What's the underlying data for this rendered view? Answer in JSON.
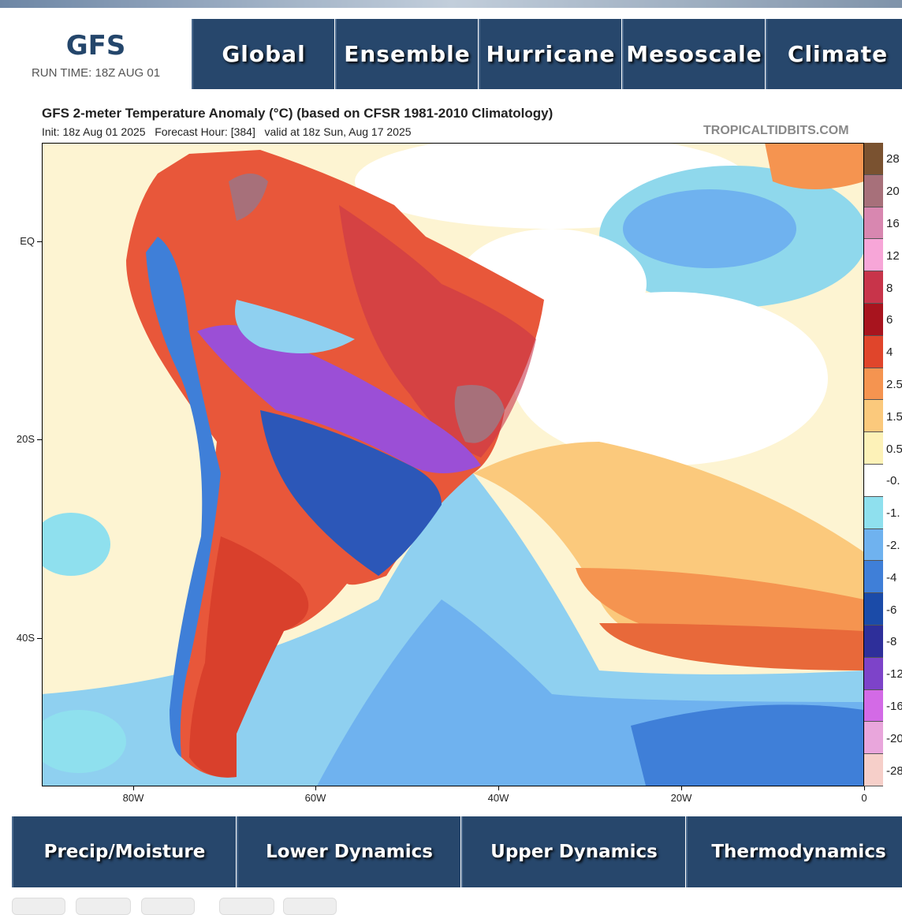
{
  "header": {
    "title": "GFS",
    "run_time": "RUN TIME: 18Z AUG 01"
  },
  "nav_top": [
    "Global",
    "Ensemble",
    "Hurricane",
    "Mesoscale",
    "Climate"
  ],
  "map": {
    "title": "GFS 2-meter Temperature Anomaly (°C) (based on CFSR 1981-2010 Climatology)",
    "subtitle": "Init: 18z Aug 01 2025   Forecast Hour: [384]   valid at 18z Sun, Aug 17 2025",
    "credit": "TROPICALTIDBITS.COM",
    "lat_labels": [
      "EQ",
      "20S",
      "40S"
    ],
    "lon_labels": [
      "80W",
      "60W",
      "40W",
      "20W",
      "0"
    ]
  },
  "colorbar": [
    {
      "label": "28",
      "color": "#7a5230"
    },
    {
      "label": "20",
      "color": "#a7707a"
    },
    {
      "label": "16",
      "color": "#d887b0"
    },
    {
      "label": "12",
      "color": "#f7a6d8"
    },
    {
      "label": "8",
      "color": "#c8344a"
    },
    {
      "label": "6",
      "color": "#a8141e"
    },
    {
      "label": "4",
      "color": "#e0452b"
    },
    {
      "label": "2.5",
      "color": "#f59450"
    },
    {
      "label": "1.5",
      "color": "#fbc97c"
    },
    {
      "label": "0.5",
      "color": "#fdf2b8"
    },
    {
      "label": "-0.",
      "color": "#ffffff"
    },
    {
      "label": "-1.",
      "color": "#8fe0ee"
    },
    {
      "label": "-2.",
      "color": "#6fb2ef"
    },
    {
      "label": "-4",
      "color": "#3f7fd8"
    },
    {
      "label": "-6",
      "color": "#1b4ba8"
    },
    {
      "label": "-8",
      "color": "#2e2f9a"
    },
    {
      "label": "-12",
      "color": "#7d43c9"
    },
    {
      "label": "-16",
      "color": "#d36ae6"
    },
    {
      "label": "-20",
      "color": "#e9a6dc"
    },
    {
      "label": "-28",
      "color": "#f6cfc9"
    }
  ],
  "nav_bottom": [
    "Precip/Moisture",
    "Lower Dynamics",
    "Upper Dynamics",
    "Thermodynamics"
  ]
}
